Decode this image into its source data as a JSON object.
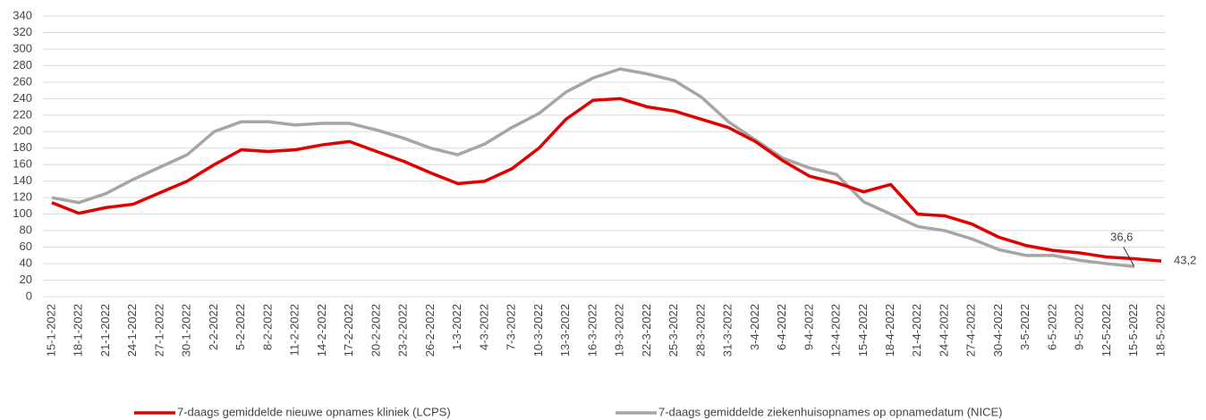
{
  "chart_data": {
    "type": "line",
    "categories": [
      "15-1-2022",
      "18-1-2022",
      "21-1-2022",
      "24-1-2022",
      "27-1-2022",
      "30-1-2022",
      "2-2-2022",
      "5-2-2022",
      "8-2-2022",
      "11-2-2022",
      "14-2-2022",
      "17-2-2022",
      "20-2-2022",
      "23-2-2022",
      "26-2-2022",
      "1-3-2022",
      "4-3-2022",
      "7-3-2022",
      "10-3-2022",
      "13-3-2022",
      "16-3-2022",
      "19-3-2022",
      "22-3-2022",
      "25-3-2022",
      "28-3-2022",
      "31-3-2022",
      "3-4-2022",
      "6-4-2022",
      "9-4-2022",
      "12-4-2022",
      "15-4-2022",
      "18-4-2022",
      "21-4-2022",
      "24-4-2022",
      "27-4-2022",
      "30-4-2022",
      "3-5-2022",
      "6-5-2022",
      "9-5-2022",
      "12-5-2022",
      "15-5-2022",
      "18-5-2022"
    ],
    "series": [
      {
        "name": "7-daags gemiddelde nieuwe opnames kliniek (LCPS)",
        "color": "#e00000",
        "values": [
          114,
          101,
          108,
          112,
          126,
          140,
          160,
          178,
          176,
          178,
          184,
          188,
          176,
          164,
          150,
          137,
          140,
          155,
          180,
          215,
          238,
          240,
          230,
          225,
          215,
          205,
          188,
          165,
          146,
          138,
          127,
          136,
          100,
          98,
          88,
          72,
          62,
          56,
          53,
          48,
          46,
          43.2
        ],
        "value_labels": [
          null,
          null,
          null,
          null,
          null,
          null,
          null,
          null,
          null,
          null,
          null,
          null,
          null,
          null,
          null,
          null,
          null,
          null,
          null,
          null,
          null,
          null,
          null,
          null,
          null,
          null,
          null,
          null,
          null,
          null,
          null,
          null,
          null,
          null,
          null,
          null,
          null,
          null,
          null,
          null,
          null,
          "43,2"
        ]
      },
      {
        "name": "7-daags gemiddelde ziekenhuisopnames op opnamedatum (NICE)",
        "color": "#a6a6a6",
        "values": [
          120,
          114,
          125,
          142,
          157,
          172,
          200,
          212,
          212,
          208,
          210,
          210,
          202,
          192,
          180,
          172,
          185,
          205,
          222,
          248,
          265,
          276,
          270,
          262,
          242,
          212,
          190,
          168,
          156,
          148,
          115,
          100,
          85,
          80,
          70,
          57,
          50,
          50,
          44,
          40,
          36.6,
          null
        ],
        "value_labels": [
          null,
          null,
          null,
          null,
          null,
          null,
          null,
          null,
          null,
          null,
          null,
          null,
          null,
          null,
          null,
          null,
          null,
          null,
          null,
          null,
          null,
          null,
          null,
          null,
          null,
          null,
          null,
          null,
          null,
          null,
          null,
          null,
          null,
          null,
          null,
          null,
          null,
          null,
          null,
          null,
          "36,6",
          null
        ]
      }
    ],
    "ylim": [
      0,
      340
    ],
    "yticks": [
      0,
      20,
      40,
      60,
      80,
      100,
      120,
      140,
      160,
      180,
      200,
      220,
      240,
      260,
      280,
      300,
      320,
      340
    ],
    "grid": true
  }
}
